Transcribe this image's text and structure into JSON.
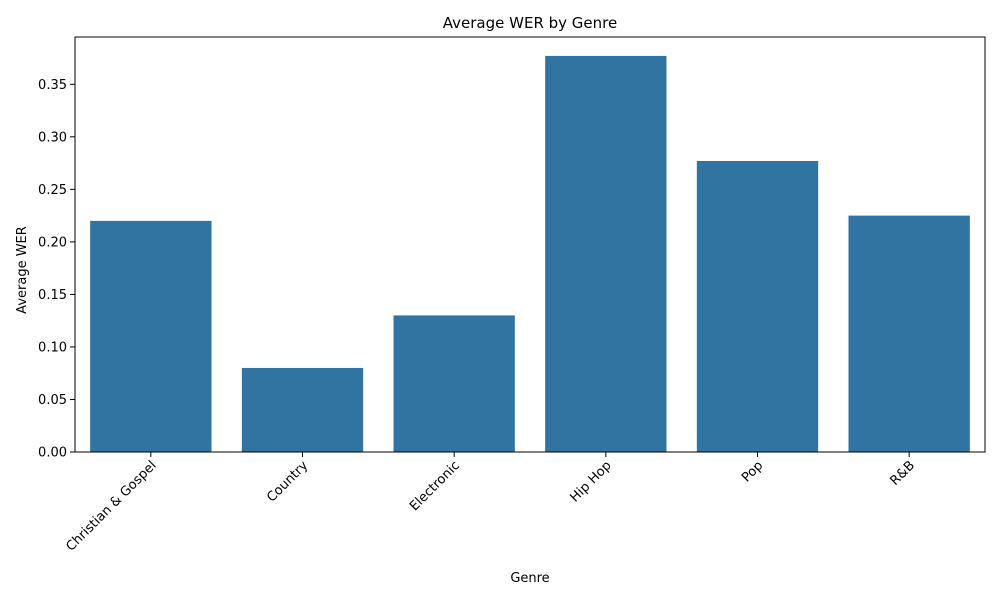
{
  "chart_data": {
    "type": "bar",
    "title": "Average WER by Genre",
    "xlabel": "Genre",
    "ylabel": "Average WER",
    "categories": [
      "Christian & Gospel",
      "Country",
      "Electronic",
      "Hip Hop",
      "Pop",
      "R&B"
    ],
    "values": [
      0.22,
      0.08,
      0.13,
      0.377,
      0.277,
      0.225
    ],
    "ylim": [
      0,
      0.395
    ],
    "yticks": [
      "0.00",
      "0.05",
      "0.10",
      "0.15",
      "0.20",
      "0.25",
      "0.30",
      "0.35"
    ],
    "ytick_values": [
      0,
      0.05,
      0.1,
      0.15,
      0.2,
      0.25,
      0.3,
      0.35
    ],
    "bar_color": "#3274a1",
    "grid": false,
    "legend": "none"
  }
}
